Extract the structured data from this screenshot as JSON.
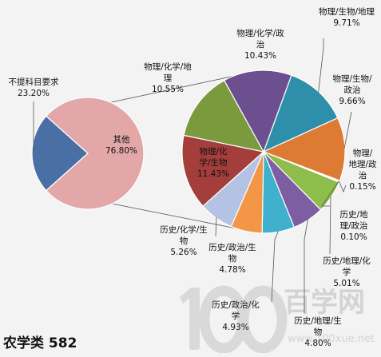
{
  "title": "农学类 582",
  "watermark": {
    "brand": "百学网",
    "url": "www.100xue.net",
    "logo": "100"
  },
  "chart_data": {
    "type": "pie",
    "subtype": "pie-of-pie",
    "main_pie": [
      {
        "name": "不提科目要求",
        "label": [
          "不提科目要求"
        ],
        "value": 23.2,
        "value_label": "23.20%",
        "color": "#4a6fa5"
      },
      {
        "name": "其他",
        "label": [
          "其他"
        ],
        "value": 76.8,
        "value_label": "76.80%",
        "color": "#e3a7a8"
      }
    ],
    "sub_pie": [
      {
        "name": "物理/生物/地理",
        "label": [
          "物理/生物/地理"
        ],
        "value": 9.71,
        "value_label": "9.71%",
        "color": "#2e8fab"
      },
      {
        "name": "物理/生物/政治",
        "label": [
          "物理/生物/",
          "政治"
        ],
        "value": 9.66,
        "value_label": "9.66%",
        "color": "#dd7b35"
      },
      {
        "name": "物理/地理/政治",
        "label": [
          "物理/",
          "地理/政",
          "治"
        ],
        "value": 0.15,
        "value_label": "0.15%",
        "color": "#8aa8d6"
      },
      {
        "name": "历史/地理/政治",
        "label": [
          "历史/地",
          "理/政治"
        ],
        "value": 0.1,
        "value_label": "0.10%",
        "color": "#c2cf8f"
      },
      {
        "name": "历史/地理/化学",
        "label": [
          "历史/地理/化",
          "学"
        ],
        "value": 5.01,
        "value_label": "5.01%",
        "color": "#8fbd4c"
      },
      {
        "name": "历史/地理/生物",
        "label": [
          "历史/地理/生",
          "物"
        ],
        "value": 4.8,
        "value_label": "4.80%",
        "color": "#7e5ea2"
      },
      {
        "name": "历史/政治/化学",
        "label": [
          "历史/政治/化",
          "学"
        ],
        "value": 4.93,
        "value_label": "4.93%",
        "color": "#3fb1cd"
      },
      {
        "name": "历史/政治/生物",
        "label": [
          "历史/政治/生",
          "物"
        ],
        "value": 4.78,
        "value_label": "4.78%",
        "color": "#f39645"
      },
      {
        "name": "历史/化学/生物",
        "label": [
          "历史/化学/生",
          "物"
        ],
        "value": 5.26,
        "value_label": "5.26%",
        "color": "#b4c3e3"
      },
      {
        "name": "物理/化学/生物",
        "label": [
          "物理/化",
          "学/生物"
        ],
        "value": 11.43,
        "value_label": "11.43%",
        "color": "#a43e3b"
      },
      {
        "name": "物理/化学/地理",
        "label": [
          "物理/化学/地",
          "理"
        ],
        "value": 10.55,
        "value_label": "10.55%",
        "color": "#7b9a3e"
      },
      {
        "name": "物理/化学/政治",
        "label": [
          "物理/化学/政",
          "治"
        ],
        "value": 10.43,
        "value_label": "10.43%",
        "color": "#6b4f8f"
      }
    ]
  }
}
